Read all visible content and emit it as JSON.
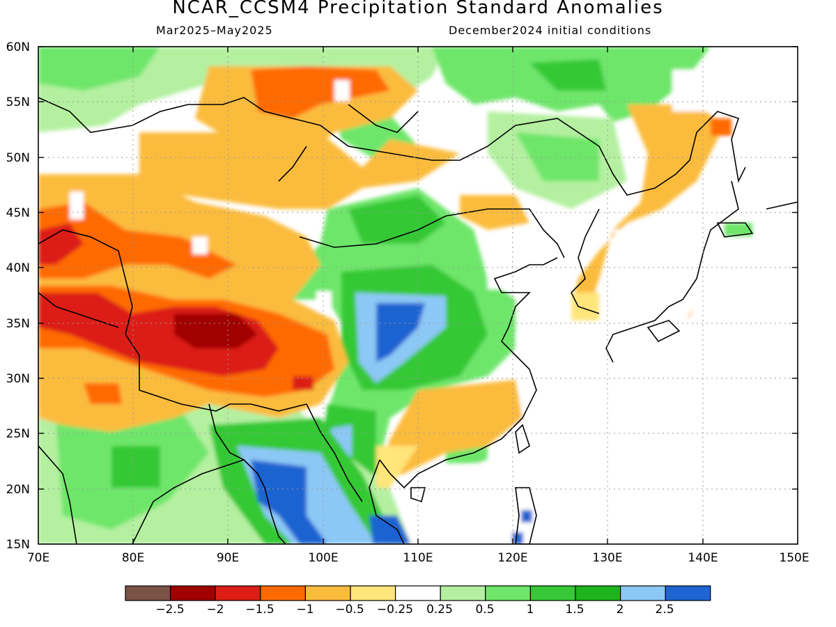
{
  "title": "NCAR_CCSM4 Precipitation Standard Anomalies",
  "subtitle_left": "Mar2025–May2025",
  "subtitle_right": "December2024 initial conditions",
  "map": {
    "lat_range": [
      15,
      60
    ],
    "lon_range": [
      70,
      150
    ],
    "lat_labels": [
      "60N",
      "55N",
      "50N",
      "45N",
      "40N",
      "35N",
      "30N",
      "25N",
      "20N",
      "15N"
    ],
    "lon_labels": [
      "70E",
      "80E",
      "90E",
      "100E",
      "110E",
      "120E",
      "130E",
      "140E",
      "150E"
    ]
  },
  "legend": {
    "labels": [
      "−2.5",
      "−2",
      "−1.5",
      "−1",
      "−0.5",
      "−0.25",
      "0.25",
      "0.5",
      "1",
      "1.5",
      "2",
      "2.5"
    ],
    "colors": [
      "#7a5346",
      "#a00000",
      "#dc1e14",
      "#ff6a00",
      "#fbbc3e",
      "#ffe57a",
      "#ffffff",
      "#b4f0a0",
      "#6ee66a",
      "#36c836",
      "#1eb41e",
      "#8cc8f5",
      "#1e64d2"
    ]
  }
}
